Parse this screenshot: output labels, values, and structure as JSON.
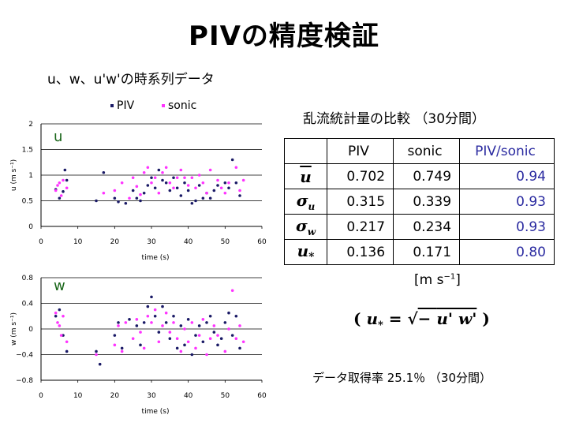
{
  "title": "PIVの精度検証",
  "subtitle": "u、w、u'w'の時系列データ",
  "legend": {
    "piv": "PIV",
    "sonic": "sonic"
  },
  "colors": {
    "piv": "#1a1a66",
    "sonic": "#ff33ff",
    "label_green": "#1a661a",
    "ratio": "#2a2aa0"
  },
  "comparison": {
    "title": "乱流統計量の比較 （30分間）",
    "headers": [
      "PIV",
      "sonic",
      "PIV/sonic"
    ],
    "rows": [
      {
        "symbol": "u",
        "sub": "",
        "piv": "0.702",
        "sonic": "0.749",
        "ratio": "0.94"
      },
      {
        "symbol": "σ",
        "sub": "u",
        "piv": "0.315",
        "sonic": "0.339",
        "ratio": "0.93"
      },
      {
        "symbol": "σ",
        "sub": "w",
        "piv": "0.217",
        "sonic": "0.234",
        "ratio": "0.93"
      },
      {
        "symbol": "u",
        "sub": "*",
        "piv": "0.136",
        "sonic": "0.171",
        "ratio": "0.80"
      }
    ],
    "unit": "[m s",
    "unit_exp": "−1",
    "unit_close": "]"
  },
  "formula": {
    "lhs": "u",
    "lhs_sub": "*",
    "eq": " = ",
    "root": "√",
    "minus": "− ",
    "term": "u' w'"
  },
  "rate_text": "データ取得率  25.1％ （30分間）",
  "chart_data": [
    {
      "type": "scatter",
      "label": "u",
      "xlabel": "time (s)",
      "ylabel": "u (m s⁻¹)",
      "xlim": [
        0,
        60
      ],
      "ylim": [
        0,
        2
      ],
      "xticks": [
        "0",
        "10",
        "20",
        "30",
        "40",
        "50",
        "60"
      ],
      "yticks": [
        "0",
        "0.5",
        "1",
        "1.5",
        "2"
      ],
      "series": [
        {
          "name": "PIV",
          "points": [
            [
              4,
              0.72
            ],
            [
              5,
              0.55
            ],
            [
              6,
              0.68
            ],
            [
              6.5,
              1.1
            ],
            [
              7,
              0.9
            ],
            [
              15,
              0.5
            ],
            [
              17,
              1.05
            ],
            [
              20,
              0.55
            ],
            [
              21,
              0.48
            ],
            [
              23,
              0.45
            ],
            [
              25,
              0.7
            ],
            [
              26,
              0.55
            ],
            [
              27,
              0.5
            ],
            [
              28,
              0.65
            ],
            [
              29,
              0.8
            ],
            [
              30,
              0.95
            ],
            [
              31,
              0.75
            ],
            [
              32,
              1.1
            ],
            [
              33,
              0.9
            ],
            [
              34,
              0.85
            ],
            [
              35,
              0.7
            ],
            [
              36,
              0.95
            ],
            [
              37,
              0.75
            ],
            [
              38,
              0.6
            ],
            [
              39,
              0.85
            ],
            [
              40,
              0.7
            ],
            [
              41,
              0.45
            ],
            [
              42,
              0.5
            ],
            [
              43,
              0.8
            ],
            [
              44,
              0.55
            ],
            [
              45,
              0.65
            ],
            [
              46,
              0.55
            ],
            [
              47,
              0.7
            ],
            [
              48,
              0.8
            ],
            [
              50,
              0.85
            ],
            [
              51,
              0.75
            ],
            [
              52,
              1.3
            ],
            [
              53,
              0.85
            ],
            [
              54,
              0.6
            ]
          ]
        },
        {
          "name": "sonic",
          "points": [
            [
              4,
              0.7
            ],
            [
              4.5,
              0.8
            ],
            [
              5,
              0.85
            ],
            [
              5.5,
              0.6
            ],
            [
              6,
              0.9
            ],
            [
              7,
              0.75
            ],
            [
              17,
              0.65
            ],
            [
              20,
              0.7
            ],
            [
              22,
              0.85
            ],
            [
              24,
              0.55
            ],
            [
              25,
              0.95
            ],
            [
              26,
              0.78
            ],
            [
              27,
              0.62
            ],
            [
              28,
              1.05
            ],
            [
              29,
              1.15
            ],
            [
              30,
              0.85
            ],
            [
              31,
              0.95
            ],
            [
              32,
              0.65
            ],
            [
              33,
              1.05
            ],
            [
              34,
              1.15
            ],
            [
              35,
              0.85
            ],
            [
              36,
              0.75
            ],
            [
              37,
              0.95
            ],
            [
              38,
              1.1
            ],
            [
              39,
              0.95
            ],
            [
              40,
              0.8
            ],
            [
              41,
              0.95
            ],
            [
              42,
              0.75
            ],
            [
              43,
              1.0
            ],
            [
              44,
              0.85
            ],
            [
              45,
              0.65
            ],
            [
              46,
              1.1
            ],
            [
              48,
              0.9
            ],
            [
              49,
              0.75
            ],
            [
              50,
              0.65
            ],
            [
              51,
              0.85
            ],
            [
              53,
              1.15
            ],
            [
              54,
              0.7
            ],
            [
              55,
              0.9
            ]
          ]
        }
      ]
    },
    {
      "type": "scatter",
      "label": "w",
      "xlabel": "time (s)",
      "ylabel": "w (m s⁻¹)",
      "xlim": [
        0,
        60
      ],
      "ylim": [
        -0.8,
        0.8
      ],
      "xticks": [
        "0",
        "10",
        "20",
        "30",
        "40",
        "50",
        "60"
      ],
      "yticks": [
        "−0.8",
        "−0.4",
        "0",
        "0.4",
        "0.8"
      ],
      "series": [
        {
          "name": "PIV",
          "points": [
            [
              4,
              0.2
            ],
            [
              5,
              0.3
            ],
            [
              6,
              -0.1
            ],
            [
              7,
              -0.35
            ],
            [
              15,
              -0.35
            ],
            [
              16,
              -0.55
            ],
            [
              20,
              -0.1
            ],
            [
              21,
              0.1
            ],
            [
              22,
              -0.3
            ],
            [
              24,
              0.15
            ],
            [
              26,
              0.05
            ],
            [
              27,
              -0.25
            ],
            [
              28,
              0.1
            ],
            [
              29,
              0.35
            ],
            [
              30,
              0.5
            ],
            [
              31,
              0.2
            ],
            [
              32,
              -0.05
            ],
            [
              33,
              0.35
            ],
            [
              34,
              0.1
            ],
            [
              35,
              -0.15
            ],
            [
              36,
              0.2
            ],
            [
              37,
              -0.3
            ],
            [
              38,
              0.05
            ],
            [
              39,
              -0.25
            ],
            [
              40,
              0.15
            ],
            [
              41,
              -0.4
            ],
            [
              42,
              -0.1
            ],
            [
              43,
              0.05
            ],
            [
              44,
              -0.2
            ],
            [
              45,
              0.1
            ],
            [
              46,
              0.2
            ],
            [
              47,
              -0.05
            ],
            [
              48,
              -0.25
            ],
            [
              49,
              -0.15
            ],
            [
              50,
              0.1
            ],
            [
              51,
              0.25
            ],
            [
              52,
              -0.1
            ],
            [
              53,
              0.2
            ],
            [
              54,
              -0.3
            ]
          ]
        },
        {
          "name": "sonic",
          "points": [
            [
              4,
              0.25
            ],
            [
              4.5,
              0.1
            ],
            [
              5,
              0.05
            ],
            [
              5.5,
              -0.1
            ],
            [
              6,
              0.2
            ],
            [
              7,
              -0.2
            ],
            [
              15,
              -0.4
            ],
            [
              20,
              -0.25
            ],
            [
              21,
              0.05
            ],
            [
              22,
              -0.35
            ],
            [
              23,
              0.1
            ],
            [
              25,
              -0.15
            ],
            [
              26,
              0.15
            ],
            [
              27,
              -0.05
            ],
            [
              28,
              -0.3
            ],
            [
              29,
              0.2
            ],
            [
              30,
              0.1
            ],
            [
              31,
              0.3
            ],
            [
              32,
              -0.2
            ],
            [
              33,
              0.05
            ],
            [
              34,
              0.25
            ],
            [
              35,
              -0.05
            ],
            [
              36,
              0.1
            ],
            [
              37,
              -0.15
            ],
            [
              38,
              -0.35
            ],
            [
              39,
              0.0
            ],
            [
              40,
              -0.2
            ],
            [
              41,
              0.1
            ],
            [
              42,
              -0.3
            ],
            [
              43,
              -0.1
            ],
            [
              44,
              0.15
            ],
            [
              45,
              -0.4
            ],
            [
              46,
              -0.15
            ],
            [
              47,
              0.05
            ],
            [
              48,
              -0.1
            ],
            [
              50,
              -0.35
            ],
            [
              51,
              0.0
            ],
            [
              52,
              0.6
            ],
            [
              53,
              -0.15
            ],
            [
              54,
              0.05
            ],
            [
              55,
              -0.2
            ]
          ]
        }
      ]
    }
  ]
}
